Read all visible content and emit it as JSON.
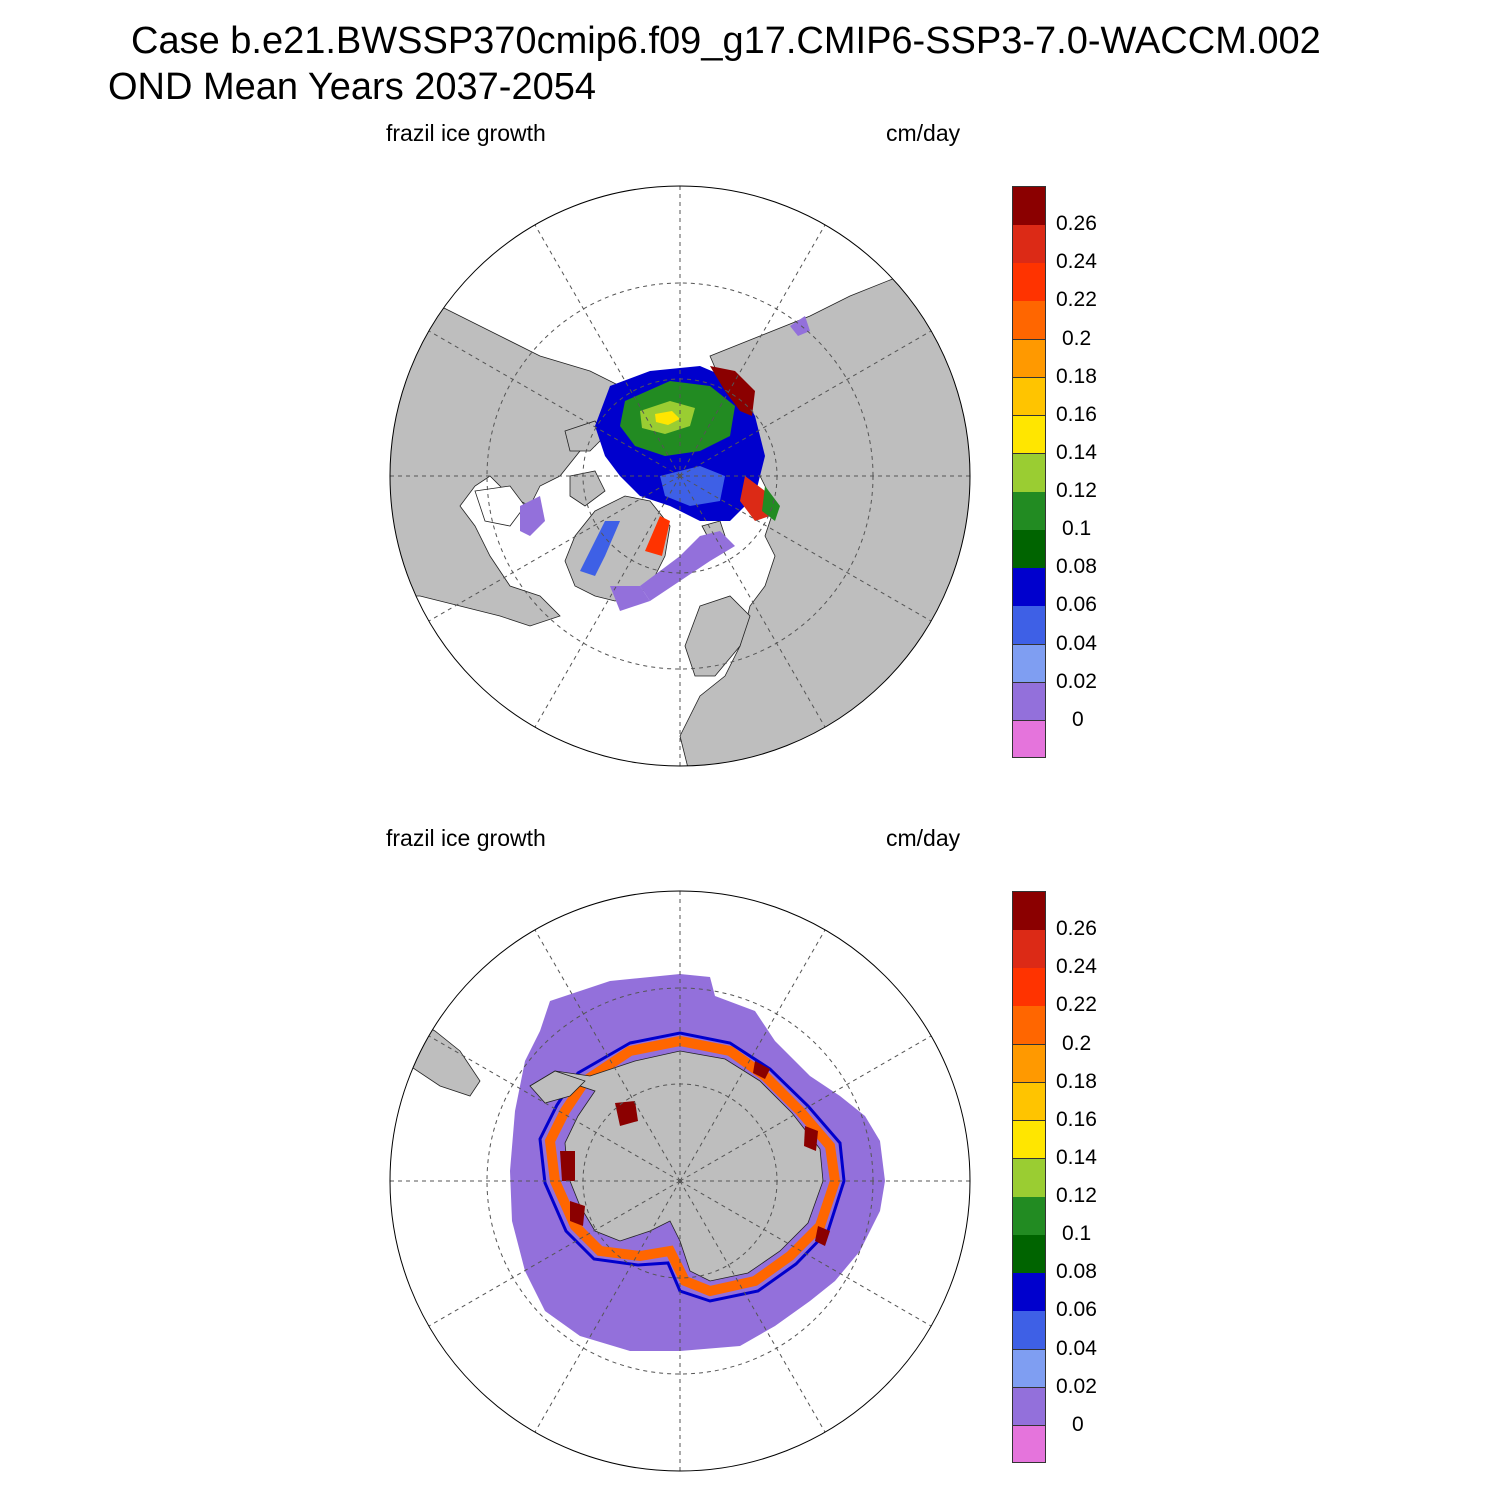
{
  "header": {
    "title": "Case b.e21.BWSSP370cmip6.f09_g17.CMIP6-SSP3-7.0-WACCM.002",
    "subtitle": "OND Mean   Years 2037-2054"
  },
  "panels": [
    {
      "id": "arctic",
      "variable_label": "frazil ice growth",
      "units_label": "cm/day",
      "projection": "north-polar-stereographic"
    },
    {
      "id": "antarctic",
      "variable_label": "frazil ice growth",
      "units_label": "cm/day",
      "projection": "south-polar-stereographic"
    }
  ],
  "colorbar": {
    "colors": [
      "#e574dc",
      "#9370db",
      "#7f9ef2",
      "#3e60e6",
      "#0000cd",
      "#006400",
      "#228b22",
      "#9acd32",
      "#ffe600",
      "#ffc400",
      "#ff9900",
      "#ff6600",
      "#ff3300",
      "#dc2a16",
      "#8b0000"
    ],
    "labels": [
      "0",
      "0.02",
      "0.04",
      "0.06",
      "0.08",
      "0.1",
      "0.12",
      "0.14",
      "0.16",
      "0.18",
      "0.2",
      "0.22",
      "0.24",
      "0.26"
    ]
  },
  "colors": {
    "land": "#bebebe",
    "ocean": "#ffffff",
    "gridline": "#555555"
  }
}
